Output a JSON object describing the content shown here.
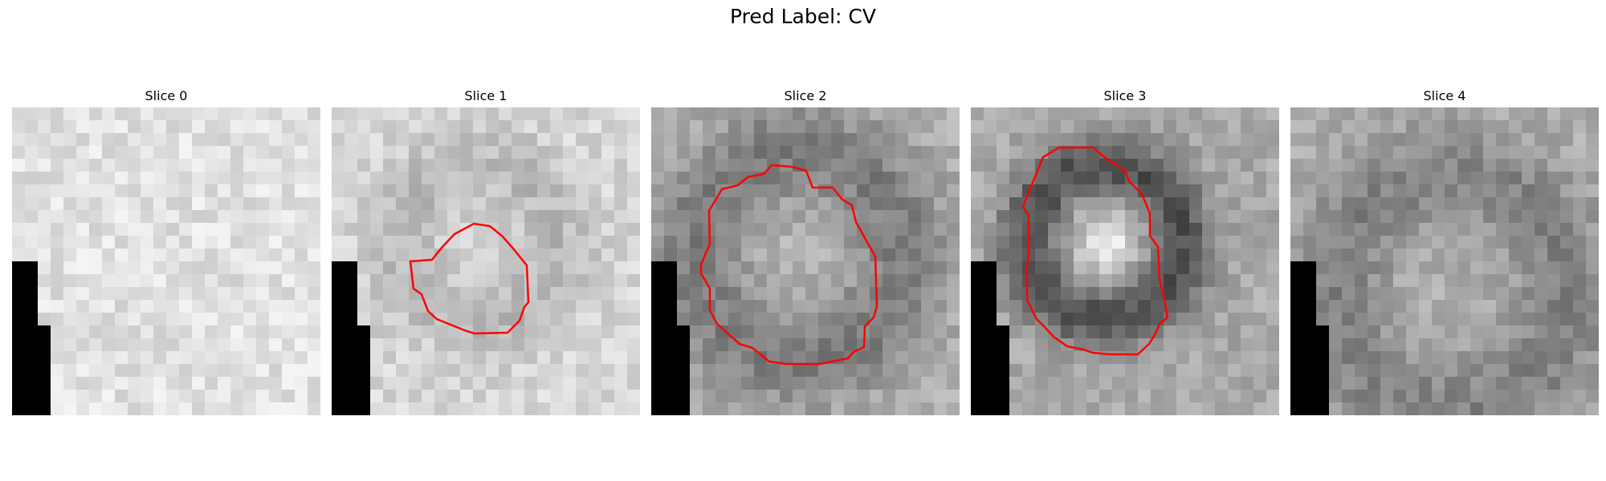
{
  "title": "Pred Label: CV",
  "contour_color": "#ff0000",
  "slices": [
    {
      "label": "Slice 0",
      "has_contour": false
    },
    {
      "label": "Slice 1",
      "has_contour": true
    },
    {
      "label": "Slice 2",
      "has_contour": true
    },
    {
      "label": "Slice 3",
      "has_contour": true
    },
    {
      "label": "Slice 4",
      "has_contour": false
    }
  ]
}
